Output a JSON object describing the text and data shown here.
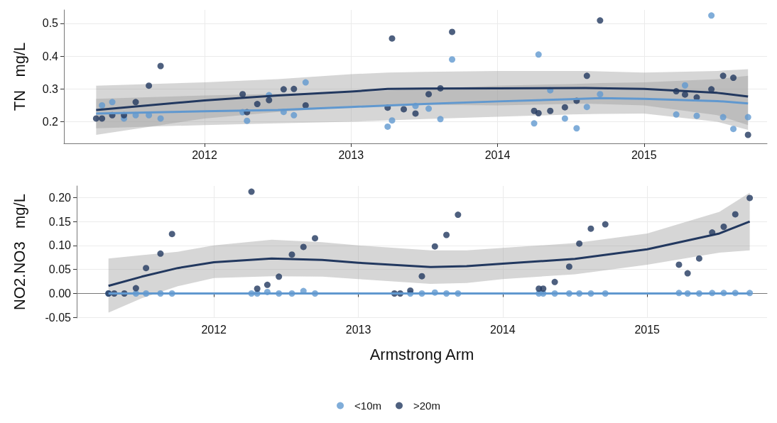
{
  "chart_data": [
    {
      "type": "scatter",
      "ylabel": "TN   mg/L",
      "xlim": [
        2011.04,
        2015.84
      ],
      "xticks": [
        2012,
        2013,
        2014,
        2015
      ],
      "ylim": [
        0.134,
        0.541
      ],
      "yticks": [
        0.2,
        0.3,
        0.4,
        0.5
      ],
      "grid": true,
      "series": [
        {
          "type": "line",
          "marker": "none",
          "color": "#6098cf",
          "x": [
            2011.26,
            2012,
            2012.5,
            2013,
            2013.5,
            2014,
            2014.5,
            2014.7,
            2015,
            2015.5,
            2015.71
          ],
          "values": [
            0.225,
            0.232,
            0.236,
            0.245,
            0.254,
            0.262,
            0.269,
            0.272,
            0.27,
            0.263,
            0.256
          ],
          "lower": [
            0.18,
            0.19,
            0.195,
            0.2,
            0.208,
            0.215,
            0.222,
            0.224,
            0.225,
            0.2,
            0.175
          ],
          "upper": [
            0.27,
            0.28,
            0.285,
            0.29,
            0.3,
            0.31,
            0.315,
            0.318,
            0.32,
            0.33,
            0.34
          ]
        },
        {
          "type": "line",
          "marker": "none",
          "color": "#22385f",
          "x": [
            2011.26,
            2012,
            2012.5,
            2013,
            2013.25,
            2013.5,
            2014,
            2014.6,
            2015,
            2015.5,
            2015.71
          ],
          "values": [
            0.236,
            0.265,
            0.28,
            0.292,
            0.3,
            0.301,
            0.302,
            0.303,
            0.3,
            0.288,
            0.277
          ],
          "lower": [
            0.16,
            0.21,
            0.23,
            0.245,
            0.25,
            0.252,
            0.25,
            0.255,
            0.25,
            0.22,
            0.19
          ],
          "upper": [
            0.31,
            0.32,
            0.33,
            0.345,
            0.35,
            0.352,
            0.355,
            0.355,
            0.35,
            0.355,
            0.36
          ]
        },
        {
          "marker": "circle",
          "color": "#6098cf",
          "x": [
            2011.3,
            2011.37,
            2011.45,
            2011.53,
            2011.62,
            2011.7,
            2012.26,
            2012.29,
            2012.36,
            2012.44,
            2012.54,
            2012.61,
            2012.69,
            2013.25,
            2013.28,
            2013.36,
            2013.44,
            2013.53,
            2013.61,
            2013.69,
            2014.25,
            2014.28,
            2014.36,
            2014.46,
            2014.54,
            2014.61,
            2014.7,
            2015.22,
            2015.28,
            2015.36,
            2015.46,
            2015.54,
            2015.61,
            2015.71
          ],
          "values": [
            0.25,
            0.26,
            0.21,
            0.22,
            0.22,
            0.21,
            0.229,
            0.203,
            null,
            0.281,
            0.23,
            0.22,
            0.32,
            0.185,
            0.204,
            null,
            0.248,
            0.24,
            0.208,
            0.39,
            0.195,
            0.405,
            0.296,
            0.21,
            0.18,
            0.245,
            0.284,
            0.222,
            0.311,
            0.218,
            0.524,
            0.214,
            0.178,
            0.214
          ]
        },
        {
          "marker": "circle",
          "color": "#22385f",
          "x": [
            2011.26,
            2011.3,
            2011.37,
            2011.45,
            2011.53,
            2011.62,
            2011.7,
            2012.26,
            2012.29,
            2012.36,
            2012.44,
            2012.54,
            2012.61,
            2012.69,
            2013.25,
            2013.28,
            2013.36,
            2013.44,
            2013.53,
            2013.61,
            2013.69,
            2014.25,
            2014.28,
            2014.36,
            2014.46,
            2014.54,
            2014.61,
            2014.7,
            2015.22,
            2015.28,
            2015.36,
            2015.46,
            2015.54,
            2015.61,
            2015.71
          ],
          "values": [
            0.21,
            0.21,
            0.22,
            0.22,
            0.26,
            0.31,
            0.37,
            0.284,
            0.229,
            0.254,
            0.266,
            0.299,
            0.3,
            0.25,
            0.243,
            0.454,
            0.238,
            0.225,
            0.284,
            0.302,
            0.474,
            0.233,
            0.226,
            0.233,
            0.244,
            0.264,
            0.34,
            0.509,
            0.293,
            0.283,
            0.274,
            0.299,
            0.34,
            0.334,
            0.16
          ]
        }
      ]
    },
    {
      "type": "scatter",
      "ylabel": "NO2.NO3   mg/L",
      "xlabel": "Armstrong Arm",
      "xlim": [
        2011.05,
        2015.83
      ],
      "xticks": [
        2012,
        2013,
        2014,
        2015
      ],
      "ylim": [
        -0.051,
        0.224
      ],
      "yticks": [
        {
          "value": -0.05,
          "label": "-0.05"
        },
        {
          "value": 0,
          "label": "0.00"
        },
        {
          "value": 0.05,
          "label": "0.05"
        },
        {
          "value": 0.1,
          "label": "0.10"
        },
        {
          "value": 0.15,
          "label": "0.15"
        },
        {
          "value": 0.2,
          "label": "0.20"
        }
      ],
      "grid": true,
      "legend": "bottom",
      "series": [
        {
          "type": "line",
          "marker": "none",
          "color": "#22385f",
          "x": [
            2011.27,
            2011.5,
            2011.75,
            2012,
            2012.4,
            2012.75,
            2013,
            2013.5,
            2013.75,
            2014,
            2014.5,
            2015,
            2015.5,
            2015.71
          ],
          "values": [
            0.016,
            0.035,
            0.053,
            0.065,
            0.073,
            0.07,
            0.064,
            0.055,
            0.057,
            0.062,
            0.072,
            0.092,
            0.125,
            0.15
          ],
          "lower": [
            -0.04,
            -0.01,
            0.015,
            0.032,
            0.036,
            0.035,
            0.03,
            0.02,
            0.022,
            0.03,
            0.04,
            0.06,
            0.085,
            0.09
          ],
          "upper": [
            0.073,
            0.08,
            0.087,
            0.1,
            0.112,
            0.107,
            0.1,
            0.09,
            0.09,
            0.095,
            0.105,
            0.125,
            0.17,
            0.21
          ]
        },
        {
          "type": "line",
          "marker": "none",
          "color": "#6098cf",
          "x": [
            2011.27,
            2015.71
          ],
          "values": [
            0,
            0
          ]
        },
        {
          "name": "<10m",
          "marker": "circle",
          "color": "#6098cf",
          "x": [
            2011.27,
            2011.46,
            2011.53,
            2011.63,
            2011.71,
            2012.26,
            2012.3,
            2012.37,
            2012.45,
            2012.54,
            2012.62,
            2012.7,
            2013.36,
            2013.44,
            2013.53,
            2013.61,
            2013.69,
            2014.25,
            2014.28,
            2014.36,
            2014.46,
            2014.53,
            2014.61,
            2014.71,
            2015.22,
            2015.28,
            2015.36,
            2015.45,
            2015.53,
            2015.61,
            2015.71
          ],
          "values": [
            0,
            0,
            0,
            0,
            0,
            0,
            0,
            0.003,
            0,
            0,
            0.005,
            0,
            0,
            0,
            0.002,
            0,
            0,
            0,
            0,
            0,
            0,
            0,
            0,
            0,
            0.001,
            0,
            0,
            0.001,
            0.001,
            0.001,
            0.001
          ]
        },
        {
          "name": ">20m",
          "marker": "circle",
          "color": "#22385f",
          "x": [
            2011.27,
            2011.31,
            2011.38,
            2011.46,
            2011.53,
            2011.63,
            2011.71,
            2012.26,
            2012.3,
            2012.37,
            2012.45,
            2012.54,
            2012.62,
            2012.7,
            2013.25,
            2013.29,
            2013.36,
            2013.44,
            2013.53,
            2013.61,
            2013.69,
            2014.25,
            2014.28,
            2014.36,
            2014.46,
            2014.53,
            2014.61,
            2014.71,
            2015.22,
            2015.28,
            2015.36,
            2015.45,
            2015.53,
            2015.61,
            2015.71
          ],
          "values": [
            0,
            0,
            0,
            0.011,
            0.053,
            0.083,
            0.124,
            0.212,
            0.01,
            0.018,
            0.035,
            0.081,
            0.097,
            0.115,
            0,
            0,
            0.006,
            0.036,
            0.098,
            0.122,
            0.164,
            0.01,
            0.01,
            0.024,
            0.056,
            0.104,
            0.135,
            0.144,
            0.06,
            0.042,
            0.073,
            0.127,
            0.139,
            0.165,
            0.199
          ]
        }
      ]
    }
  ]
}
